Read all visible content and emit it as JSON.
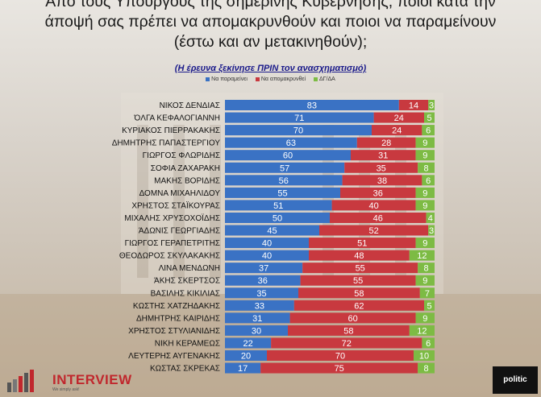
{
  "title_lines": [
    "Από τους Υπουργούς της σημερινής Κυβέρνησης, ποιοι κατά την",
    "άποψή σας πρέπει να απομακρυνθούν και ποιοι να παραμείνουν",
    "(έστω και αν μετακινηθούν);"
  ],
  "subtitle": "(Η έρευνα ξεκίνησε ΠΡΙΝ τον ανασχηματισμό)",
  "logo_left": {
    "name": "INTERVIEW",
    "tagline": "We simply ask!"
  },
  "logo_right": {
    "name": "politic"
  },
  "colors": {
    "stay": "#3a72c4",
    "remove": "#c8393f",
    "dk": "#7dbb44"
  },
  "chart_data": {
    "type": "bar",
    "orientation": "horizontal",
    "stacked": true,
    "categories": [
      "ΝΙΚΟΣ ΔΕΝΔΙΑΣ",
      "ΌΛΓΑ ΚΕΦΑΛΟΓΙΑΝΝΗ",
      "ΚΥΡΙΑΚΟΣ ΠΙΕΡΡΑΚΑΚΗΣ",
      "ΔΗΜΗΤΡΗΣ ΠΑΠΑΣΤΕΡΓΙΟΥ",
      "ΓΙΩΡΓΟΣ ΦΛΩΡΙΔΗΣ",
      "ΣΟΦΙΑ ΖΑΧΑΡΑΚΗ",
      "ΜΑΚΗΣ ΒΟΡΙΔΗΣ",
      "ΔΟΜΝΑ ΜΙΧΑΗΛΙΔΟΥ",
      "ΧΡΗΣΤΟΣ ΣΤΑΪΚΟΥΡΑΣ",
      "ΜΙΧΑΛΗΣ ΧΡΥΣΟΧΟΪΔΗΣ",
      "ΆΔΩΝΙΣ ΓΕΩΡΓΙΑΔΗΣ",
      "ΓΙΩΡΓΟΣ ΓΕΡΑΠΕΤΡΙΤΗΣ",
      "ΘΕΟΔΩΡΟΣ ΣΚΥΛΑΚΑΚΗΣ",
      "ΛΙΝΑ ΜΕΝΔΩΝΗ",
      "ΆΚΗΣ ΣΚΕΡΤΣΟΣ",
      "ΒΑΣΙΛΗΣ ΚΙΚΙΛΙΑΣ",
      "ΚΩΣΤΗΣ ΧΑΤΖΗΔΑΚΗΣ",
      "ΔΗΜΗΤΡΗΣ ΚΑΙΡΙΔΗΣ",
      "ΧΡΗΣΤΟΣ ΣΤΥΛΙΑΝΙΔΗΣ",
      "ΝΙΚΗ ΚΕΡΑΜΕΩΣ",
      "ΛΕΥΤΕΡΗΣ ΑΥΓΕΝΑΚΗΣ",
      "ΚΩΣΤΑΣ ΣΚΡΕΚΑΣ"
    ],
    "series": [
      {
        "name": "Να παραμείνει",
        "values": [
          83,
          71,
          70,
          63,
          60,
          57,
          56,
          55,
          51,
          50,
          45,
          40,
          40,
          37,
          36,
          35,
          33,
          31,
          30,
          22,
          20,
          17
        ]
      },
      {
        "name": "Να απομακρυνθεί",
        "values": [
          14,
          24,
          24,
          28,
          31,
          35,
          38,
          36,
          40,
          46,
          52,
          51,
          48,
          55,
          55,
          58,
          62,
          60,
          58,
          72,
          70,
          75
        ]
      },
      {
        "name": "ΔΓ/ΔΑ",
        "values": [
          3,
          5,
          6,
          9,
          9,
          8,
          6,
          9,
          9,
          4,
          3,
          9,
          12,
          8,
          9,
          7,
          5,
          9,
          12,
          6,
          10,
          8
        ]
      }
    ],
    "xlim": [
      0,
      100
    ]
  }
}
